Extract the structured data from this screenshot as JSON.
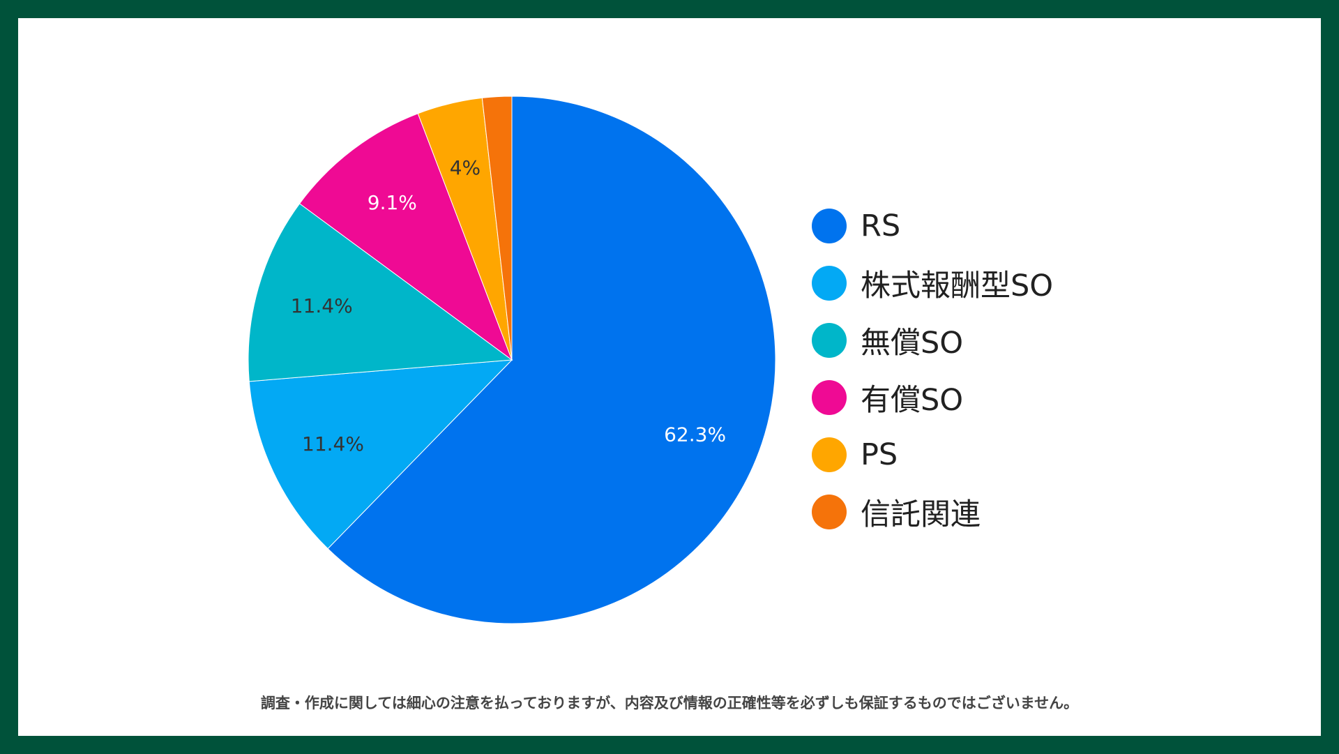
{
  "chart_data": {
    "type": "pie",
    "title": "",
    "categories": [
      "RS",
      "株式報酬型SO",
      "無償SO",
      "有償SO",
      "PS",
      "信託関連"
    ],
    "values": [
      62.3,
      11.4,
      11.4,
      9.1,
      4.0,
      1.8
    ],
    "data_labels": [
      "62.3%",
      "11.4%",
      "11.4%",
      "9.1%",
      "4%",
      ""
    ],
    "colors": [
      "#0073ee",
      "#03a9f4",
      "#00b6c9",
      "#ef0a94",
      "#ffa600",
      "#f5730a"
    ],
    "label_colors": [
      "#ffffff",
      "#333333",
      "#333333",
      "#ffffff",
      "#333333",
      "#333333"
    ],
    "legend_position": "right",
    "start_angle": "12 o'clock",
    "direction": "clockwise"
  },
  "disclaimer": "調査・作成に関しては細心の注意を払っておりますが、内容及び情報の正確性等を必ずしも保証するものではございません。"
}
